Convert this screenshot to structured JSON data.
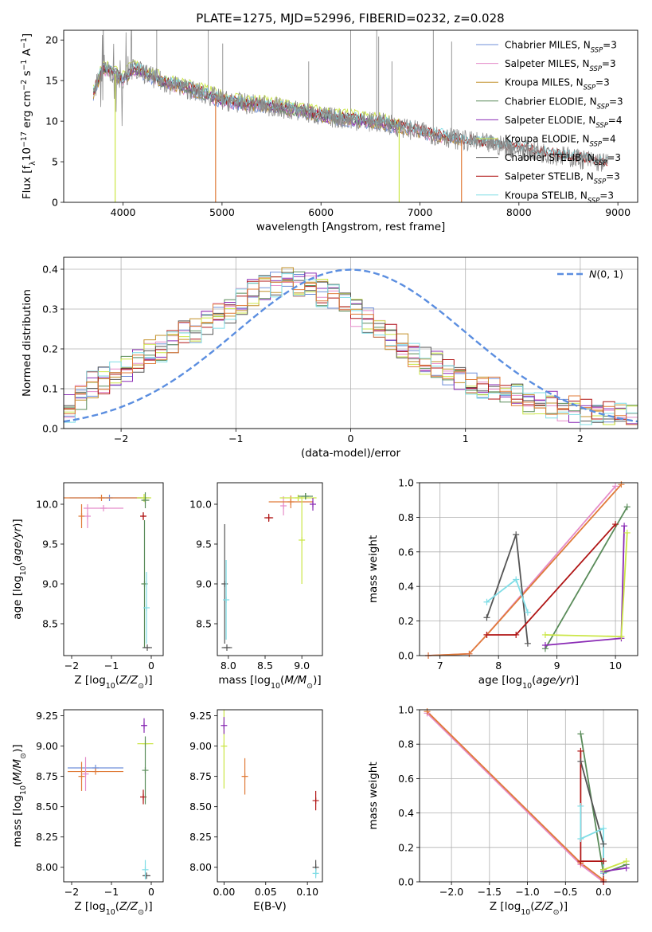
{
  "colors": {
    "chabrier_miles": "#6f8fd9",
    "salpeter_miles": "#e58cc9",
    "kroupa_miles": "#c2902a",
    "chabrier_elodie": "#5a8c5a",
    "salpeter_elodie": "#8a2bb5",
    "kroupa_elodie": "#cbe647",
    "chabrier_stelib": "#555555",
    "salpeter_stelib": "#b01515",
    "kroupa_stelib": "#7fdde6",
    "orange": "#e07b39",
    "data_grey": "#8c8c8c",
    "normal_curve": "#5b8ee0"
  },
  "chart_data": [
    {
      "id": "spectrum",
      "type": "line",
      "title": "PLATE=1275, MJD=52996, FIBERID=0232, z=0.028",
      "xlabel": "wavelength [Angstrom, rest frame]",
      "ylabel": "Flux [f_λ10^-17 erg cm^-2 s^-1 A^-1]",
      "xlim": [
        3400,
        9200
      ],
      "ylim": [
        0,
        21.2
      ],
      "xticks": [
        4000,
        5000,
        6000,
        7000,
        8000,
        9000
      ],
      "yticks": [
        0,
        5,
        10,
        15,
        20
      ],
      "legend_position": "top-right",
      "legend": [
        {
          "label": "Chabrier MILES, N",
          "sub": "SSP",
          "suffix": "=3",
          "color_key": "chabrier_miles"
        },
        {
          "label": "Salpeter MILES, N",
          "sub": "SSP",
          "suffix": "=3",
          "color_key": "salpeter_miles"
        },
        {
          "label": "Kroupa MILES, N",
          "sub": "SSP",
          "suffix": "=3",
          "color_key": "kroupa_miles"
        },
        {
          "label": "Chabrier ELODIE, N",
          "sub": "SSP",
          "suffix": "=3",
          "color_key": "chabrier_elodie"
        },
        {
          "label": "Salpeter ELODIE, N",
          "sub": "SSP",
          "suffix": "=4",
          "color_key": "salpeter_elodie"
        },
        {
          "label": "Kroupa ELODIE, N",
          "sub": "SSP",
          "suffix": "=4",
          "color_key": "kroupa_elodie"
        },
        {
          "label": "Chabrier STELIB, N",
          "sub": "SSP",
          "suffix": "=3",
          "color_key": "chabrier_stelib"
        },
        {
          "label": "Salpeter STELIB, N",
          "sub": "SSP",
          "suffix": "=3",
          "color_key": "salpeter_stelib"
        },
        {
          "label": "Kroupa STELIB, N",
          "sub": "SSP",
          "suffix": "=3",
          "color_key": "kroupa_stelib"
        }
      ],
      "continuum": {
        "x": [
          3700,
          3800,
          3900,
          4000,
          4100,
          4200,
          4400,
          4600,
          4800,
          5000,
          5200,
          5500,
          5800,
          6000,
          6300,
          6600,
          6800,
          7000,
          7200,
          7500,
          7800,
          8100,
          8400,
          8700,
          8900
        ],
        "y": [
          13.5,
          16.5,
          16.0,
          15.0,
          16.5,
          16.0,
          14.8,
          14.2,
          13.4,
          12.6,
          12.2,
          11.8,
          11.2,
          10.6,
          10.2,
          9.8,
          9.3,
          8.7,
          8.2,
          7.5,
          7.0,
          6.4,
          5.8,
          5.2,
          4.8
        ]
      },
      "model_spikes": [
        {
          "x": 3920,
          "ymin": 0,
          "color_key": "kroupa_elodie"
        },
        {
          "x": 4935,
          "ymin": 0,
          "color_key": "orange"
        },
        {
          "x": 6790,
          "ymin": 0,
          "color_key": "kroupa_elodie"
        },
        {
          "x": 7420,
          "ymin": 0,
          "color_key": "orange"
        }
      ]
    },
    {
      "id": "residuals",
      "type": "area",
      "xlabel": "(data-model)/error",
      "ylabel": "Normed distribution",
      "xlim": [
        -2.5,
        2.5
      ],
      "ylim": [
        0,
        0.43
      ],
      "xticks": [
        -2,
        -1,
        0,
        1,
        2
      ],
      "yticks": [
        0.0,
        0.1,
        0.2,
        0.3,
        0.4
      ],
      "grid": true,
      "legend_position": "top-right",
      "legend": [
        {
          "label": "N(0, 1)",
          "style": "dashed",
          "color_key": "normal_curve"
        }
      ],
      "bins": 50,
      "envelope": [
        0.05,
        0.08,
        0.11,
        0.12,
        0.14,
        0.15,
        0.17,
        0.19,
        0.2,
        0.22,
        0.24,
        0.25,
        0.26,
        0.28,
        0.3,
        0.32,
        0.34,
        0.35,
        0.36,
        0.37,
        0.36,
        0.36,
        0.34,
        0.33,
        0.31,
        0.29,
        0.27,
        0.25,
        0.23,
        0.21,
        0.19,
        0.17,
        0.16,
        0.14,
        0.13,
        0.12,
        0.11,
        0.1,
        0.09,
        0.08,
        0.07,
        0.07,
        0.06,
        0.05,
        0.05,
        0.04,
        0.04,
        0.04,
        0.03,
        0.03
      ],
      "normal_curve": {
        "mu": 0,
        "sigma": 1
      }
    },
    {
      "id": "z-vs-age",
      "type": "scatter",
      "xlabel": "Z [log10(Z/Z⊙)]",
      "ylabel": "age [log10(age/yr)]",
      "xlim": [
        -2.2,
        0.3
      ],
      "ylim": [
        8.1,
        10.27
      ],
      "xticks": [
        -2,
        -1,
        0
      ],
      "yticks": [
        8.5,
        9.0,
        9.5,
        10.0
      ],
      "errorbars": [
        {
          "x": -1.05,
          "y": 10.08,
          "xerr": 1.0,
          "yerr": 0,
          "color_key": "chabrier_miles"
        },
        {
          "x": -1.25,
          "y": 10.08,
          "xerr": 1.0,
          "yerr": 0,
          "color_key": "orange"
        },
        {
          "x": -1.2,
          "y": 9.95,
          "xerr": 0.5,
          "yerr": 0,
          "color_key": "salpeter_miles"
        },
        {
          "x": -1.75,
          "y": 9.85,
          "xerr": 0,
          "yerr": 0.15,
          "color_key": "orange"
        },
        {
          "x": -1.6,
          "y": 9.85,
          "xerr": 0,
          "yerr": 0.15,
          "color_key": "salpeter_miles"
        },
        {
          "x": -0.2,
          "y": 9.85,
          "xerr": 0.05,
          "yerr": 0.05,
          "color_key": "salpeter_stelib"
        },
        {
          "x": -0.18,
          "y": 10.08,
          "xerr": 0.18,
          "yerr": 0.05,
          "color_key": "kroupa_elodie"
        },
        {
          "x": -0.15,
          "y": 10.05,
          "xerr": 0.1,
          "yerr": 0.1,
          "color_key": "chabrier_elodie"
        },
        {
          "x": -0.17,
          "y": 9.0,
          "xerr": 0,
          "yerr": 0.8,
          "color_key": "chabrier_elodie"
        },
        {
          "x": -0.12,
          "y": 8.7,
          "xerr": 0,
          "yerr": 0.45,
          "color_key": "kroupa_stelib"
        },
        {
          "x": -0.1,
          "y": 8.2,
          "xerr": 0.12,
          "yerr": 0,
          "color_key": "chabrier_stelib"
        }
      ]
    },
    {
      "id": "mass-vs-age",
      "type": "scatter",
      "xlabel": "mass [log10(M/M⊙)]",
      "ylabel": "",
      "xlim": [
        7.85,
        9.28
      ],
      "ylim": [
        8.1,
        10.27
      ],
      "xticks": [
        8.0,
        8.5,
        9.0
      ],
      "yticks": [
        8.5,
        9.0,
        9.5,
        10.0
      ],
      "errorbars": [
        {
          "x": 7.95,
          "y": 9.0,
          "xerr": 0,
          "yerr": 0.75,
          "color_key": "chabrier_stelib"
        },
        {
          "x": 7.97,
          "y": 8.8,
          "xerr": 0,
          "yerr": 0.5,
          "color_key": "kroupa_stelib"
        },
        {
          "x": 7.98,
          "y": 8.2,
          "xerr": 0.07,
          "yerr": 0,
          "color_key": "chabrier_stelib"
        },
        {
          "x": 8.55,
          "y": 9.83,
          "xerr": 0.06,
          "yerr": 0.05,
          "color_key": "salpeter_stelib"
        },
        {
          "x": 8.75,
          "y": 9.98,
          "xerr": 0,
          "yerr": 0.12,
          "color_key": "salpeter_miles"
        },
        {
          "x": 8.85,
          "y": 10.03,
          "xerr": 0.3,
          "yerr": 0.08,
          "color_key": "orange"
        },
        {
          "x": 8.95,
          "y": 10.08,
          "xerr": 0.25,
          "yerr": 0.04,
          "color_key": "kroupa_elodie"
        },
        {
          "x": 9.0,
          "y": 9.55,
          "xerr": 0,
          "yerr": 0.55,
          "color_key": "kroupa_elodie"
        },
        {
          "x": 9.05,
          "y": 10.1,
          "xerr": 0.1,
          "yerr": 0.04,
          "color_key": "chabrier_elodie"
        },
        {
          "x": 9.15,
          "y": 10.0,
          "xerr": 0,
          "yerr": 0.08,
          "color_key": "salpeter_elodie"
        }
      ]
    },
    {
      "id": "age-vs-weight",
      "type": "line",
      "xlabel": "age [log10(age/yr)]",
      "ylabel": "mass weight",
      "xlim": [
        6.65,
        10.38
      ],
      "ylim": [
        0,
        1.0
      ],
      "xticks": [
        7,
        8,
        9,
        10
      ],
      "yticks": [
        0.0,
        0.2,
        0.4,
        0.6,
        0.8,
        1.0
      ],
      "grid": true,
      "series": [
        {
          "color_key": "salpeter_miles",
          "x": [
            6.8,
            7.5,
            7.8,
            10.0
          ],
          "y": [
            0.0,
            0.01,
            0.12,
            0.98
          ]
        },
        {
          "color_key": "orange",
          "x": [
            6.8,
            7.5,
            7.8,
            10.1
          ],
          "y": [
            0.0,
            0.01,
            0.12,
            0.99
          ]
        },
        {
          "color_key": "chabrier_stelib",
          "x": [
            7.8,
            8.3,
            8.5
          ],
          "y": [
            0.22,
            0.7,
            0.07
          ]
        },
        {
          "color_key": "kroupa_stelib",
          "x": [
            7.8,
            8.3,
            8.5
          ],
          "y": [
            0.31,
            0.44,
            0.25
          ]
        },
        {
          "color_key": "salpeter_stelib",
          "x": [
            7.8,
            8.3,
            10.0
          ],
          "y": [
            0.12,
            0.12,
            0.76
          ]
        },
        {
          "color_key": "chabrier_elodie",
          "x": [
            8.8,
            10.2
          ],
          "y": [
            0.04,
            0.86
          ]
        },
        {
          "color_key": "salpeter_elodie",
          "x": [
            8.8,
            10.1,
            10.15
          ],
          "y": [
            0.06,
            0.1,
            0.75
          ]
        },
        {
          "color_key": "kroupa_elodie",
          "x": [
            8.8,
            10.1,
            10.2
          ],
          "y": [
            0.12,
            0.11,
            0.71
          ]
        }
      ]
    },
    {
      "id": "z-vs-mass",
      "type": "scatter",
      "xlabel": "Z [log10(Z/Z⊙)]",
      "ylabel": "mass [log10(M/M⊙)]",
      "xlim": [
        -2.2,
        0.3
      ],
      "ylim": [
        7.88,
        9.3
      ],
      "xticks": [
        -2,
        -1,
        0
      ],
      "yticks": [
        8.0,
        8.25,
        8.5,
        8.75,
        9.0,
        9.25
      ],
      "errorbars": [
        {
          "x": -1.4,
          "y": 8.82,
          "xerr": 0.7,
          "yerr": 0,
          "color_key": "chabrier_miles"
        },
        {
          "x": -1.4,
          "y": 8.79,
          "xerr": 0.7,
          "yerr": 0,
          "color_key": "orange"
        },
        {
          "x": -1.65,
          "y": 8.77,
          "xerr": 0,
          "yerr": 0.14,
          "color_key": "salpeter_miles"
        },
        {
          "x": -1.75,
          "y": 8.75,
          "xerr": 0,
          "yerr": 0.12,
          "color_key": "orange"
        },
        {
          "x": -0.2,
          "y": 8.58,
          "xerr": 0,
          "yerr": 0.06,
          "color_key": "salpeter_stelib"
        },
        {
          "x": -0.18,
          "y": 9.17,
          "xerr": 0.06,
          "yerr": 0.06,
          "color_key": "salpeter_elodie"
        },
        {
          "x": -0.15,
          "y": 9.02,
          "xerr": 0.2,
          "yerr": 0,
          "color_key": "kroupa_elodie"
        },
        {
          "x": -0.15,
          "y": 8.8,
          "xerr": 0,
          "yerr": 0.28,
          "color_key": "chabrier_elodie"
        },
        {
          "x": -0.12,
          "y": 7.93,
          "xerr": 0.1,
          "yerr": 0,
          "color_key": "chabrier_stelib"
        },
        {
          "x": -0.15,
          "y": 7.98,
          "xerr": 0,
          "yerr": 0.08,
          "color_key": "kroupa_stelib"
        }
      ]
    },
    {
      "id": "ebv-vs-mass",
      "type": "scatter",
      "xlabel": "E(B-V)",
      "ylabel": "",
      "xlim": [
        -0.008,
        0.118
      ],
      "ylim": [
        7.88,
        9.3
      ],
      "xticks": [
        0.0,
        0.05,
        0.1
      ],
      "yticks": [
        8.0,
        8.25,
        8.5,
        8.75,
        9.0,
        9.25
      ],
      "errorbars": [
        {
          "x": 0.0,
          "y": 9.0,
          "xerr": 0,
          "yerr": 0.35,
          "color_key": "kroupa_elodie"
        },
        {
          "x": 0.0,
          "y": 9.17,
          "xerr": 0,
          "yerr": 0.07,
          "color_key": "salpeter_elodie"
        },
        {
          "x": 0.025,
          "y": 8.75,
          "xerr": 0,
          "yerr": 0.15,
          "color_key": "orange"
        },
        {
          "x": 0.11,
          "y": 8.55,
          "xerr": 0,
          "yerr": 0.08,
          "color_key": "salpeter_stelib"
        },
        {
          "x": 0.11,
          "y": 8.0,
          "xerr": 0,
          "yerr": 0.06,
          "color_key": "chabrier_stelib"
        },
        {
          "x": 0.11,
          "y": 7.95,
          "xerr": 0,
          "yerr": 0.04,
          "color_key": "kroupa_stelib"
        }
      ]
    },
    {
      "id": "z-vs-weight",
      "type": "line",
      "xlabel": "Z [log10(Z/Z⊙)]",
      "ylabel": "mass weight",
      "xlim": [
        -2.42,
        0.45
      ],
      "ylim": [
        0,
        1.0
      ],
      "xticks": [
        -2.0,
        -1.5,
        -1.0,
        -0.5,
        0.0
      ],
      "yticks": [
        0.0,
        0.2,
        0.4,
        0.6,
        0.8,
        1.0
      ],
      "grid": true,
      "series": [
        {
          "color_key": "salpeter_miles",
          "x": [
            -2.32,
            -0.3,
            0.0
          ],
          "y": [
            0.98,
            0.1,
            0.0
          ]
        },
        {
          "color_key": "orange",
          "x": [
            -2.32,
            -0.3,
            0.0
          ],
          "y": [
            0.99,
            0.11,
            0.01
          ]
        },
        {
          "color_key": "chabrier_elodie",
          "x": [
            -0.3,
            0.0,
            0.3
          ],
          "y": [
            0.86,
            0.05,
            0.1
          ]
        },
        {
          "color_key": "chabrier_stelib",
          "x": [
            -0.3,
            0.0,
            0.0
          ],
          "y": [
            0.7,
            0.22,
            0.07
          ]
        },
        {
          "color_key": "salpeter_stelib",
          "x": [
            -0.3,
            -0.3,
            0.0,
            0.0
          ],
          "y": [
            0.76,
            0.12,
            0.12,
            0.0
          ]
        },
        {
          "color_key": "kroupa_stelib",
          "x": [
            -0.3,
            -0.3,
            0.0,
            0.0
          ],
          "y": [
            0.44,
            0.25,
            0.31,
            0.05
          ]
        },
        {
          "color_key": "salpeter_elodie",
          "x": [
            0.0,
            0.3
          ],
          "y": [
            0.06,
            0.08
          ]
        },
        {
          "color_key": "kroupa_elodie",
          "x": [
            0.0,
            0.3
          ],
          "y": [
            0.07,
            0.12
          ]
        }
      ]
    }
  ]
}
